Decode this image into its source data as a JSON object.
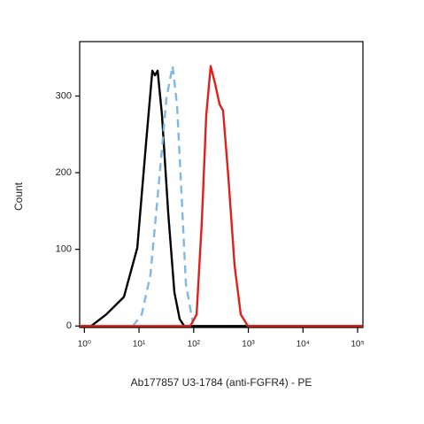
{
  "chart_data": {
    "type": "line",
    "y_label": "Count",
    "x_label": "Ab177857 U3-1784 (anti-FGFR4) - PE",
    "log_x": true,
    "xlim": [
      0.82,
      125000
    ],
    "ylim": [
      -2,
      371
    ],
    "xticks": [
      {
        "value": 1,
        "label": "10⁰"
      },
      {
        "value": 10,
        "label": "10¹"
      },
      {
        "value": 100,
        "label": "10²"
      },
      {
        "value": 1000,
        "label": "10³"
      },
      {
        "value": 10000,
        "label": "10⁴"
      },
      {
        "value": 100000,
        "label": "10⁵"
      }
    ],
    "yticks": [
      0,
      100,
      200,
      300
    ],
    "series": [
      {
        "color": "#000000",
        "dash": false,
        "x": [
          0.82,
          1.33,
          2.5,
          5.3,
          9.3,
          13.5,
          17.5,
          19.5,
          21.9,
          26.3,
          34.2,
          44.4,
          55.5,
          67,
          125000
        ],
        "values": [
          0,
          0,
          15,
          38,
          102,
          240,
          333,
          327,
          333,
          275,
          148,
          44,
          9,
          0,
          0
        ]
      },
      {
        "color": "#7fb8e6",
        "dash": true,
        "x": [
          7.7,
          11.2,
          16.2,
          23.6,
          31.8,
          41.2,
          49.7,
          59.9,
          72,
          97
        ],
        "values": [
          0,
          15,
          67,
          194,
          298,
          339,
          287,
          171,
          55,
          3
        ]
      },
      {
        "color": "#e0201b",
        "dash": false,
        "x": [
          0.82,
          86.9,
          113,
          141,
          170,
          205,
          247,
          298,
          345,
          432,
          561,
          728,
          981,
          125000
        ],
        "values": [
          0,
          0,
          15,
          136,
          275,
          339,
          316,
          289,
          281,
          194,
          79,
          15,
          0,
          0
        ]
      }
    ]
  }
}
